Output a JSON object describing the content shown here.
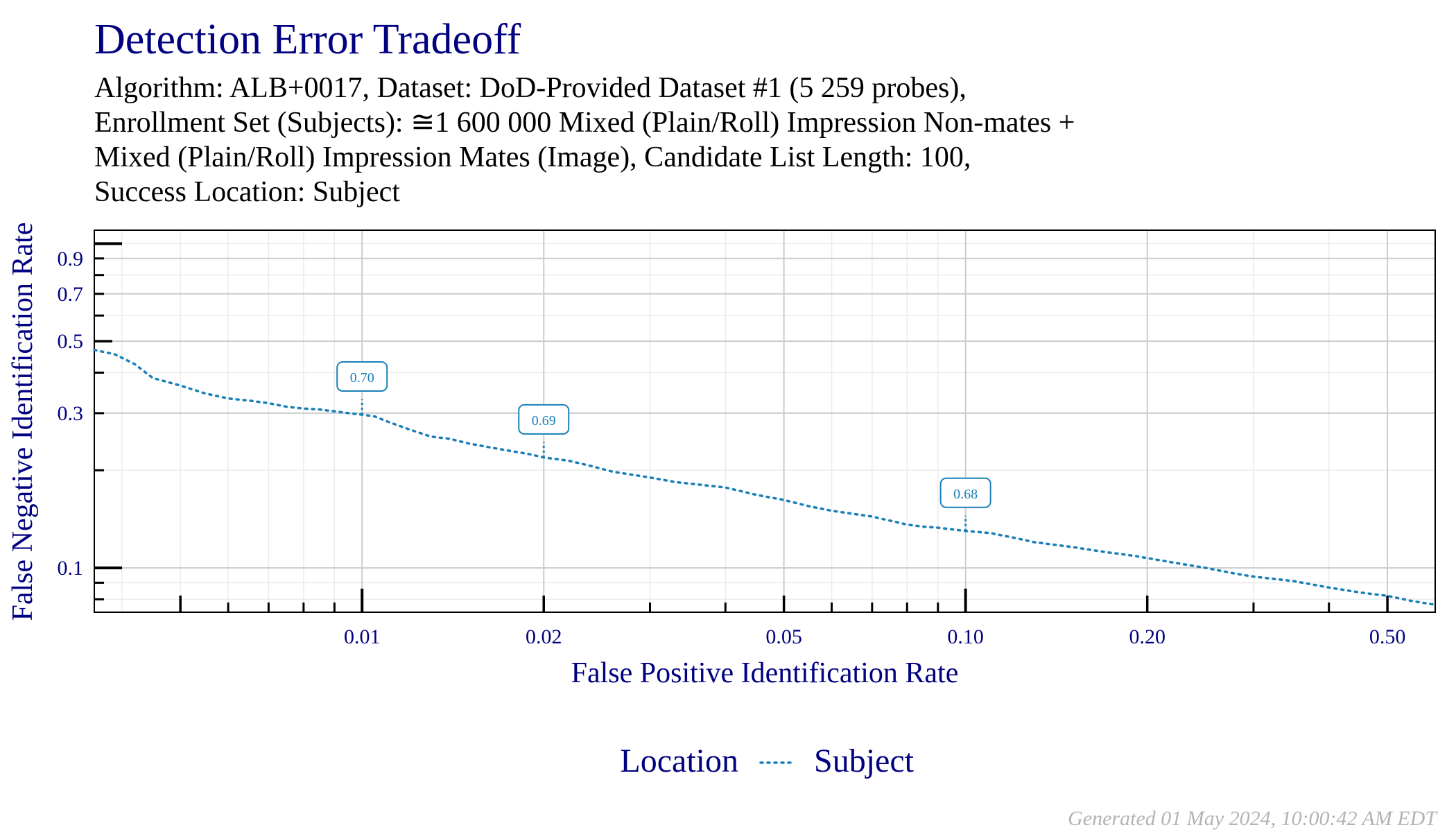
{
  "header": {
    "title": "Detection Error Tradeoff",
    "subtitle_lines": [
      "Algorithm: ALB+0017, Dataset: DoD-Provided Dataset #1 (5 259 probes),",
      "Enrollment Set (Subjects): ≅1 600 000 Mixed (Plain/Roll) Impression Non-mates +",
      "Mixed (Plain/Roll) Impression Mates (Image), Candidate List Length: 100,",
      "Success Location: Subject"
    ]
  },
  "footer": {
    "generated": "Generated 01 May 2024, 10:00:42 AM EDT"
  },
  "colors": {
    "title": "#000080",
    "series": "#1a7fb8",
    "grid_major": "#cccccc",
    "grid_minor": "#ebebeb"
  },
  "chart_data": {
    "type": "line",
    "xlabel": "False Positive Identification Rate",
    "ylabel": "False Negative Identification Rate",
    "x_scale": "log",
    "y_scale": "log",
    "xlim": [
      0.0036,
      0.6
    ],
    "ylim": [
      0.073,
      1.1
    ],
    "x_ticks": [
      {
        "value": 0.01,
        "label": "0.01"
      },
      {
        "value": 0.02,
        "label": "0.02"
      },
      {
        "value": 0.05,
        "label": "0.05"
      },
      {
        "value": 0.1,
        "label": "0.10"
      },
      {
        "value": 0.2,
        "label": "0.20"
      },
      {
        "value": 0.5,
        "label": "0.50"
      }
    ],
    "y_ticks": [
      {
        "value": 0.1,
        "label": "0.1"
      },
      {
        "value": 0.3,
        "label": "0.3"
      },
      {
        "value": 0.5,
        "label": "0.5"
      },
      {
        "value": 0.7,
        "label": "0.7"
      },
      {
        "value": 0.9,
        "label": "0.9"
      }
    ],
    "legend": {
      "title": "Location",
      "position": "bottom"
    },
    "series": [
      {
        "name": "Subject",
        "line_style": "dotted",
        "x": [
          0.0036,
          0.0039,
          0.0042,
          0.0045,
          0.005,
          0.0055,
          0.006,
          0.0065,
          0.007,
          0.0075,
          0.008,
          0.0085,
          0.009,
          0.0095,
          0.01,
          0.0105,
          0.011,
          0.012,
          0.013,
          0.014,
          0.015,
          0.017,
          0.019,
          0.02,
          0.022,
          0.024,
          0.026,
          0.03,
          0.033,
          0.04,
          0.045,
          0.05,
          0.055,
          0.06,
          0.07,
          0.08,
          0.085,
          0.09,
          0.1,
          0.11,
          0.12,
          0.13,
          0.15,
          0.17,
          0.19,
          0.22,
          0.25,
          0.28,
          0.3,
          0.35,
          0.4,
          0.45,
          0.5,
          0.55,
          0.6
        ],
        "y": [
          0.47,
          0.455,
          0.425,
          0.385,
          0.365,
          0.345,
          0.333,
          0.328,
          0.322,
          0.314,
          0.31,
          0.308,
          0.304,
          0.3,
          0.297,
          0.293,
          0.283,
          0.267,
          0.254,
          0.25,
          0.242,
          0.232,
          0.224,
          0.219,
          0.214,
          0.206,
          0.198,
          0.19,
          0.184,
          0.177,
          0.168,
          0.162,
          0.155,
          0.15,
          0.144,
          0.136,
          0.134,
          0.133,
          0.13,
          0.128,
          0.124,
          0.12,
          0.116,
          0.112,
          0.109,
          0.104,
          0.1,
          0.096,
          0.094,
          0.091,
          0.087,
          0.084,
          0.082,
          0.079,
          0.077
        ]
      }
    ],
    "annotations": [
      {
        "x": 0.01,
        "y": 0.297,
        "label": "0.70"
      },
      {
        "x": 0.02,
        "y": 0.219,
        "label": "0.69"
      },
      {
        "x": 0.1,
        "y": 0.13,
        "label": "0.68"
      }
    ]
  }
}
